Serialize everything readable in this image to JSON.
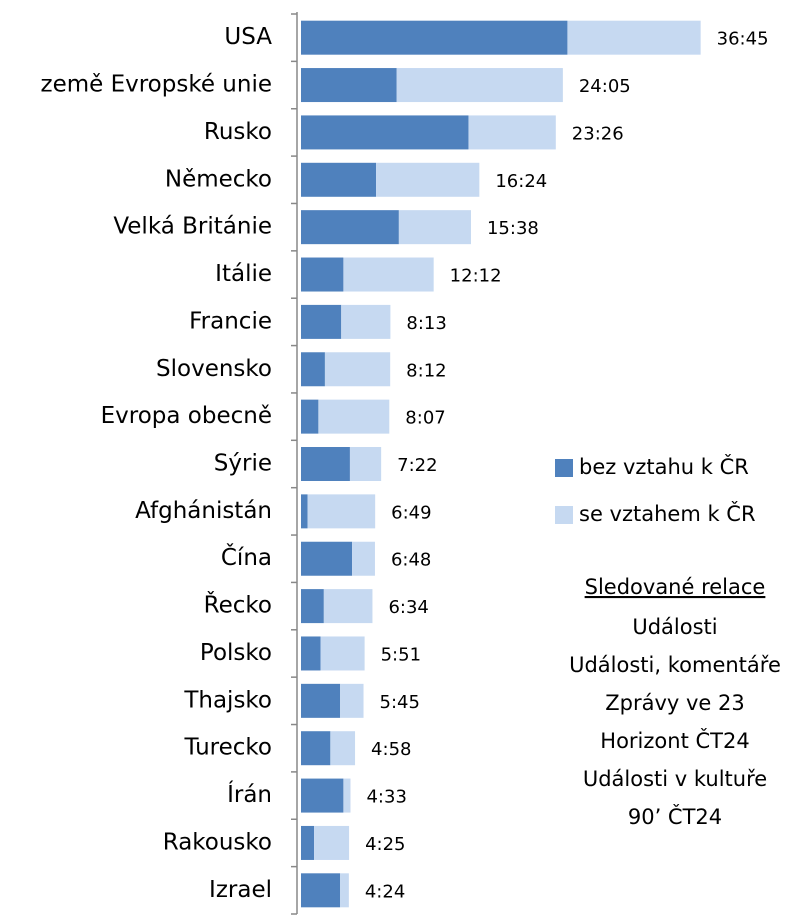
{
  "chart_data": {
    "type": "stacked-bar-horizontal",
    "categories": [
      "USA",
      "země Evropské unie",
      "Rusko",
      "Německo",
      "Velká Británie",
      "Itálie",
      "Francie",
      "Slovensko",
      "Evropa obecně",
      "Sýrie",
      "Afghánistán",
      "Čína",
      "Řecko",
      "Polsko",
      "Thajsko",
      "Turecko",
      "Írán",
      "Rakousko",
      "Izrael"
    ],
    "series": [
      {
        "name": "bez vztahu k ČR",
        "color": "#4f81bd",
        "values": [
          24.5,
          8.8,
          15.4,
          6.9,
          9.0,
          3.9,
          3.7,
          2.2,
          1.6,
          4.5,
          0.6,
          4.7,
          2.1,
          1.8,
          3.6,
          2.7,
          3.9,
          1.2,
          3.6
        ]
      },
      {
        "name": "se vztahem k ČR",
        "color": "#c6d9f1",
        "values": [
          12.25,
          15.28,
          8.03,
          9.5,
          6.63,
          8.3,
          4.52,
          6.0,
          6.52,
          2.87,
          6.22,
          2.1,
          4.47,
          4.05,
          2.15,
          2.27,
          0.65,
          3.22,
          0.8
        ]
      }
    ],
    "totals": [
      36.75,
      24.08,
      23.43,
      16.4,
      15.63,
      12.2,
      8.22,
      8.2,
      8.12,
      7.37,
      6.82,
      6.8,
      6.57,
      5.85,
      5.75,
      4.97,
      4.55,
      4.42,
      4.4
    ],
    "total_labels": [
      "36:45",
      "24:05",
      "23:26",
      "16:24",
      "15:38",
      "12:12",
      "8:13",
      "8:12",
      "8:07",
      "7:22",
      "6:49",
      "6:48",
      "6:34",
      "5:51",
      "5:45",
      "4:58",
      "4:33",
      "4:25",
      "4:24"
    ],
    "xlim": [
      0,
      40
    ],
    "legend": "right",
    "annotation": {
      "title": "Sledované relace",
      "lines": [
        "Události",
        "Události, komentáře",
        "Zprávy ve 23",
        "Horizont ČT24",
        "Události v kultuře",
        "90’ ČT24"
      ]
    }
  }
}
